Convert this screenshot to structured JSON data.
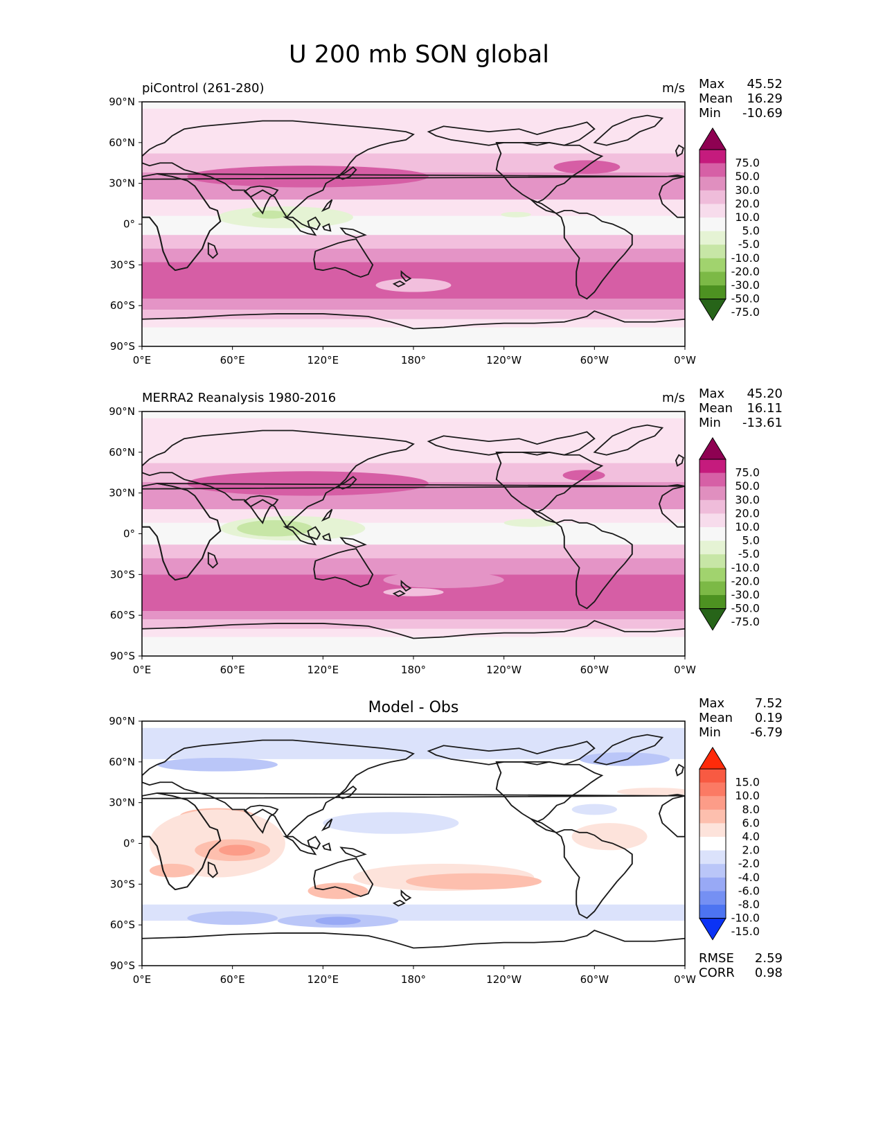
{
  "figure": {
    "title": "U 200 mb SON global"
  },
  "panels": [
    {
      "id": "model",
      "left_title": "piControl (261-280)",
      "center_title": "",
      "units": "m/s",
      "stats": {
        "max_label": "Max",
        "max": "45.52",
        "mean_label": "Mean",
        "mean": "16.29",
        "min_label": "Min",
        "min": "-10.69"
      },
      "colorbar": {
        "labels": [
          "75.0",
          "50.0",
          "30.0",
          "20.0",
          "10.0",
          "5.0",
          "-5.0",
          "-10.0",
          "-20.0",
          "-30.0",
          "-50.0",
          "-75.0"
        ],
        "colors": [
          "#8e0152",
          "#c51b7d",
          "#d660a6",
          "#e08fbf",
          "#efbcda",
          "#f7dcec",
          "#f7f7f7",
          "#e5f3d4",
          "#c7e6a6",
          "#a1d36e",
          "#7cb946",
          "#4d9221",
          "#276419"
        ],
        "extend": "both"
      },
      "bands": [
        {
          "color": "#fbe3f0",
          "top": 85,
          "bottom": 52
        },
        {
          "color": "#f2bfdd",
          "top": 52,
          "bottom": 38
        },
        {
          "color": "#e494c6",
          "top": 38,
          "bottom": 18
        },
        {
          "color": "#fbe3f0",
          "top": 18,
          "bottom": 6
        },
        {
          "color": "#f7f7f7",
          "top": 6,
          "bottom": -8
        },
        {
          "color": "#f2bfdd",
          "top": -8,
          "bottom": -18
        },
        {
          "color": "#e494c6",
          "top": -18,
          "bottom": -28
        },
        {
          "color": "#d65ea5",
          "top": -28,
          "bottom": -55
        },
        {
          "color": "#e494c6",
          "top": -55,
          "bottom": -63
        },
        {
          "color": "#f2bfdd",
          "top": -63,
          "bottom": -70
        },
        {
          "color": "#fbe3f0",
          "top": -70,
          "bottom": -76
        }
      ],
      "blobs": [
        {
          "color": "#d65ea5",
          "lon": 110,
          "lat": 35,
          "rx": 80,
          "ry": 8
        },
        {
          "color": "#d65ea5",
          "lon": 295,
          "lat": 42,
          "rx": 22,
          "ry": 5
        },
        {
          "color": "#e5f3d4",
          "lon": 95,
          "lat": 5,
          "rx": 45,
          "ry": 8
        },
        {
          "color": "#c7e6a6",
          "lon": 85,
          "lat": 7,
          "rx": 12,
          "ry": 3
        },
        {
          "color": "#e5f3d4",
          "lon": 248,
          "lat": 7,
          "rx": 10,
          "ry": 2
        },
        {
          "color": "#f2bfdd",
          "lon": 180,
          "lat": -45,
          "rx": 25,
          "ry": 5
        }
      ]
    },
    {
      "id": "obs",
      "left_title": "MERRA2 Reanalysis 1980-2016",
      "center_title": "",
      "units": "m/s",
      "stats": {
        "max_label": "Max",
        "max": "45.20",
        "mean_label": "Mean",
        "mean": "16.11",
        "min_label": "Min",
        "min": "-13.61"
      },
      "colorbar": {
        "labels": [
          "75.0",
          "50.0",
          "30.0",
          "20.0",
          "10.0",
          "5.0",
          "-5.0",
          "-10.0",
          "-20.0",
          "-30.0",
          "-50.0",
          "-75.0"
        ],
        "colors": [
          "#8e0152",
          "#c51b7d",
          "#d660a6",
          "#e08fbf",
          "#efbcda",
          "#f7dcec",
          "#f7f7f7",
          "#e5f3d4",
          "#c7e6a6",
          "#a1d36e",
          "#7cb946",
          "#4d9221",
          "#276419"
        ],
        "extend": "both"
      },
      "bands": [
        {
          "color": "#fbe3f0",
          "top": 85,
          "bottom": 52
        },
        {
          "color": "#f2bfdd",
          "top": 52,
          "bottom": 38
        },
        {
          "color": "#e494c6",
          "top": 38,
          "bottom": 18
        },
        {
          "color": "#fbe3f0",
          "top": 18,
          "bottom": 8
        },
        {
          "color": "#f7f7f7",
          "top": 8,
          "bottom": -8
        },
        {
          "color": "#f2bfdd",
          "top": -8,
          "bottom": -18
        },
        {
          "color": "#e494c6",
          "top": -18,
          "bottom": -30
        },
        {
          "color": "#d65ea5",
          "top": -30,
          "bottom": -57
        },
        {
          "color": "#e494c6",
          "top": -57,
          "bottom": -63
        },
        {
          "color": "#f2bfdd",
          "top": -63,
          "bottom": -70
        },
        {
          "color": "#fbe3f0",
          "top": -70,
          "bottom": -76
        }
      ],
      "blobs": [
        {
          "color": "#d65ea5",
          "lon": 110,
          "lat": 37,
          "rx": 80,
          "ry": 9
        },
        {
          "color": "#d65ea5",
          "lon": 293,
          "lat": 43,
          "rx": 14,
          "ry": 4
        },
        {
          "color": "#e494c6",
          "lon": 200,
          "lat": -34,
          "rx": 40,
          "ry": 6
        },
        {
          "color": "#e5f3d4",
          "lon": 100,
          "lat": 4,
          "rx": 48,
          "ry": 9
        },
        {
          "color": "#c7e6a6",
          "lon": 88,
          "lat": 4,
          "rx": 25,
          "ry": 6
        },
        {
          "color": "#e5f3d4",
          "lon": 258,
          "lat": 8,
          "rx": 18,
          "ry": 3
        },
        {
          "color": "#f2bfdd",
          "lon": 180,
          "lat": -43,
          "rx": 20,
          "ry": 3
        }
      ]
    },
    {
      "id": "diff",
      "left_title": "",
      "center_title": "Model - Obs",
      "units": "",
      "stats": {
        "max_label": "Max",
        "max": "7.52",
        "mean_label": "Mean",
        "mean": "0.19",
        "min_label": "Min",
        "min": "-6.79"
      },
      "metrics": {
        "rmse_label": "RMSE",
        "rmse": "2.59",
        "corr_label": "CORR",
        "corr": "0.98"
      },
      "colorbar": {
        "labels": [
          "15.0",
          "10.0",
          "8.0",
          "6.0",
          "4.0",
          "2.0",
          "-2.0",
          "-4.0",
          "-6.0",
          "-8.0",
          "-10.0",
          "-15.0"
        ],
        "colors": [
          "#ff2b0a",
          "#f85a42",
          "#fb7a64",
          "#fc9c88",
          "#fdbfae",
          "#fde3db",
          "#ffffff",
          "#dbe2fb",
          "#bac6f8",
          "#98a9f5",
          "#7590f3",
          "#4d74f1",
          "#0b33f5"
        ],
        "extend": "both"
      },
      "bands": [
        {
          "color": "#dbe2fb",
          "top": 85,
          "bottom": 62
        },
        {
          "color": "#ffffff",
          "top": 62,
          "bottom": 40
        },
        {
          "color": "#ffffff",
          "top": 40,
          "bottom": -45
        },
        {
          "color": "#dbe2fb",
          "top": -45,
          "bottom": -57
        },
        {
          "color": "#ffffff",
          "top": -57,
          "bottom": -90
        }
      ],
      "blobs": [
        {
          "color": "#bac6f8",
          "lon": 50,
          "lat": 58,
          "rx": 40,
          "ry": 5
        },
        {
          "color": "#bac6f8",
          "lon": 320,
          "lat": 62,
          "rx": 30,
          "ry": 5
        },
        {
          "color": "#bac6f8",
          "lon": 170,
          "lat": 15,
          "rx": 25,
          "ry": 5
        },
        {
          "color": "#dbe2fb",
          "lon": 165,
          "lat": 15,
          "rx": 45,
          "ry": 8
        },
        {
          "color": "#fdbfae",
          "lon": 50,
          "lat": 20,
          "rx": 25,
          "ry": 6
        },
        {
          "color": "#fde3db",
          "lon": 50,
          "lat": 0,
          "rx": 45,
          "ry": 25
        },
        {
          "color": "#fdbfae",
          "lon": 60,
          "lat": -5,
          "rx": 25,
          "ry": 8
        },
        {
          "color": "#fc9c88",
          "lon": 63,
          "lat": -5,
          "rx": 12,
          "ry": 4
        },
        {
          "color": "#fde3db",
          "lon": 200,
          "lat": -25,
          "rx": 60,
          "ry": 10
        },
        {
          "color": "#fdbfae",
          "lon": 220,
          "lat": -28,
          "rx": 45,
          "ry": 6
        },
        {
          "color": "#fdbfae",
          "lon": 130,
          "lat": -35,
          "rx": 20,
          "ry": 6
        },
        {
          "color": "#fde3db",
          "lon": 310,
          "lat": 5,
          "rx": 25,
          "ry": 10
        },
        {
          "color": "#fdbfae",
          "lon": 20,
          "lat": -20,
          "rx": 15,
          "ry": 5
        },
        {
          "color": "#bac6f8",
          "lon": 60,
          "lat": -55,
          "rx": 30,
          "ry": 5
        },
        {
          "color": "#bac6f8",
          "lon": 130,
          "lat": -57,
          "rx": 40,
          "ry": 5
        },
        {
          "color": "#98a9f5",
          "lon": 130,
          "lat": -57,
          "rx": 15,
          "ry": 3
        },
        {
          "color": "#fde3db",
          "lon": 340,
          "lat": 38,
          "rx": 25,
          "ry": 3
        },
        {
          "color": "#dbe2fb",
          "lon": 300,
          "lat": 25,
          "rx": 15,
          "ry": 4
        }
      ]
    }
  ],
  "axes": {
    "lat_ticks": [
      "90°N",
      "60°N",
      "30°N",
      "0°",
      "30°S",
      "60°S",
      "90°S"
    ],
    "lon_ticks": [
      "0°E",
      "60°E",
      "120°E",
      "180°",
      "120°W",
      "60°W",
      "0°W"
    ]
  }
}
